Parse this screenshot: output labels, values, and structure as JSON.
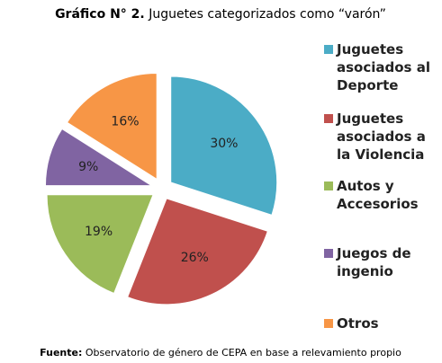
{
  "chart_data": {
    "type": "pie",
    "title_prefix": "Gráfico N° 2.",
    "title": "Juguetes categorizados como “varón”",
    "categories": [
      "Juguetes asociados al Deporte",
      "Juguetes asociados a la Violencia",
      "Autos y Accesorios",
      "Juegos de ingenio",
      "Otros"
    ],
    "values": [
      30,
      26,
      19,
      9,
      16
    ],
    "value_labels": [
      "30%",
      "26%",
      "19%",
      "9%",
      "16%"
    ],
    "colors": [
      "#4bacc6",
      "#c0504d",
      "#9bbb59",
      "#8064a2",
      "#f79646"
    ],
    "legend": "right",
    "source_prefix": "Fuente:",
    "source": "Observatorio de género de CEPA en base a relevamiento propio"
  }
}
